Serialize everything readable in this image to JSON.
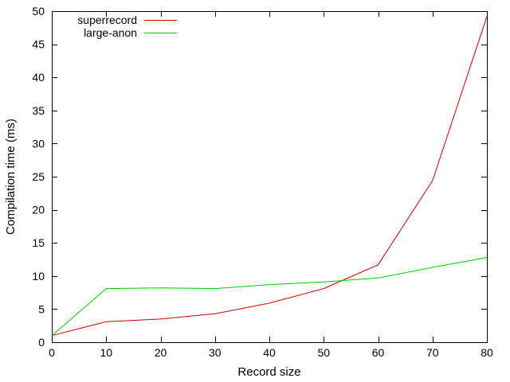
{
  "chart_data": {
    "type": "line",
    "title": "",
    "xlabel": "Record size",
    "ylabel": "Compilation time (ms)",
    "xlim": [
      0,
      80
    ],
    "ylim": [
      0,
      50
    ],
    "xticks": [
      0,
      10,
      20,
      30,
      40,
      50,
      60,
      70,
      80
    ],
    "yticks": [
      0,
      5,
      10,
      15,
      20,
      25,
      30,
      35,
      40,
      45,
      50
    ],
    "grid": false,
    "legend_position": "top-left",
    "x": [
      0,
      10,
      20,
      30,
      40,
      50,
      60,
      70,
      80
    ],
    "series": [
      {
        "name": "superrecord",
        "color": "#cc0000",
        "values": [
          1.0,
          3.1,
          3.5,
          4.3,
          5.9,
          8.1,
          11.7,
          24.4,
          49.2
        ]
      },
      {
        "name": "large-anon",
        "color": "#00cc00",
        "values": [
          1.0,
          8.1,
          8.2,
          8.1,
          8.7,
          9.1,
          9.7,
          11.3,
          12.8
        ]
      }
    ]
  }
}
